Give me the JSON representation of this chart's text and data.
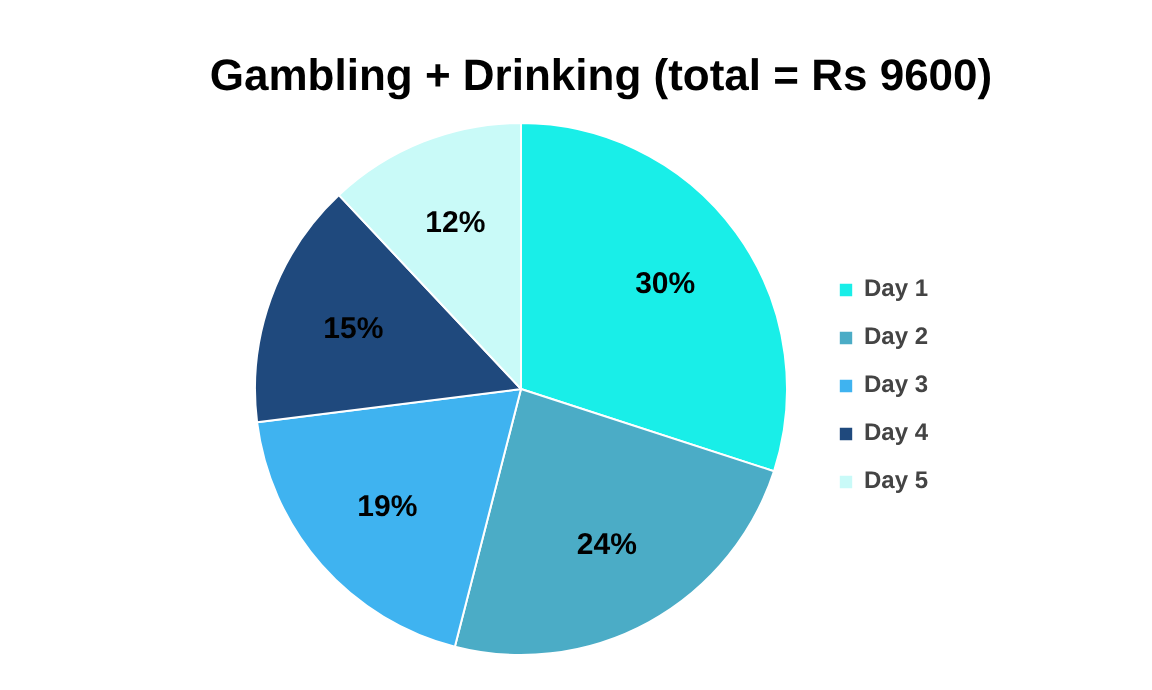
{
  "chart_data": {
    "type": "pie",
    "title": "Gambling + Drinking (total = Rs 9600)",
    "categories": [
      "Day 1",
      "Day 2",
      "Day 3",
      "Day 4",
      "Day 5"
    ],
    "values": [
      30,
      24,
      19,
      15,
      12
    ],
    "value_labels": [
      "30%",
      "24%",
      "19%",
      "15%",
      "12%"
    ],
    "colors": [
      "#19eee8",
      "#4bacc6",
      "#3fb3f0",
      "#1f497d",
      "#c9faf8"
    ],
    "legend": "right"
  }
}
